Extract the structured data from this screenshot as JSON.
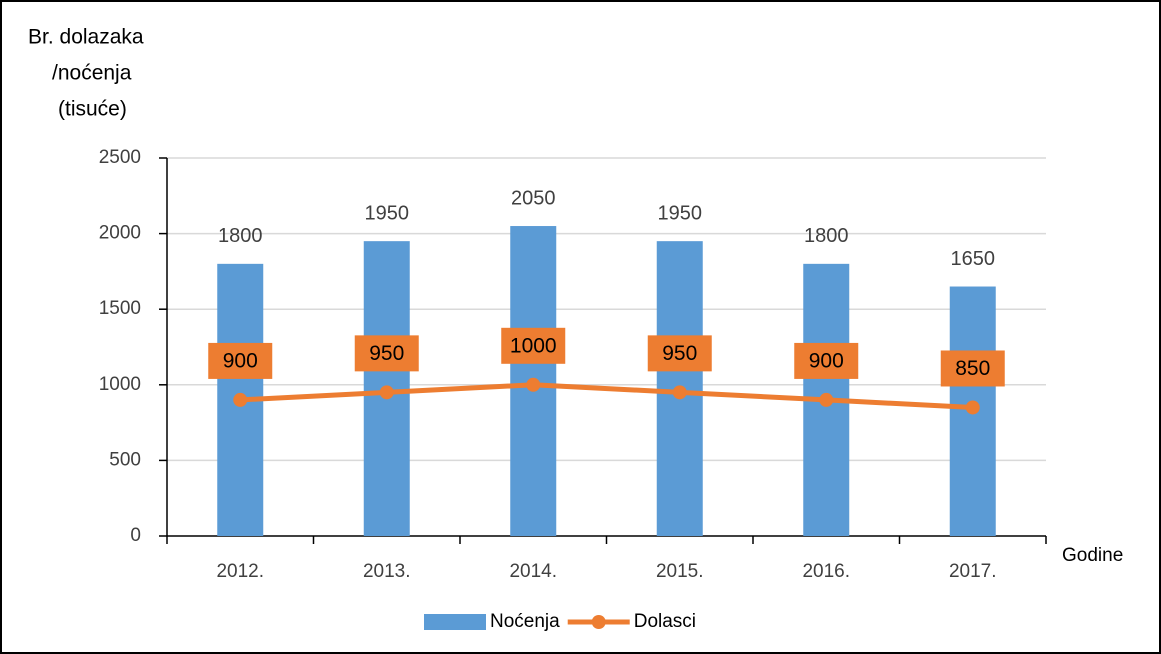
{
  "chart_data": {
    "type": "bar",
    "y_label": [
      "Br. dolazaka",
      "/noćenja",
      "(tisuće)"
    ],
    "x_label": "Godine",
    "categories": [
      "2012.",
      "2013.",
      "2014.",
      "2015.",
      "2016.",
      "2017."
    ],
    "series": [
      {
        "name": "Noćenja",
        "type": "bar",
        "color": "#5b9bd5",
        "values": [
          1800,
          1950,
          2050,
          1950,
          1800,
          1650
        ]
      },
      {
        "name": "Dolasci",
        "type": "line",
        "color": "#ed7d31",
        "values": [
          900,
          950,
          1000,
          950,
          900,
          850
        ]
      }
    ],
    "ylim": [
      0,
      2500
    ],
    "yticks": [
      0,
      500,
      1000,
      1500,
      2000,
      2500
    ],
    "grid": true,
    "legend": "bottom"
  }
}
